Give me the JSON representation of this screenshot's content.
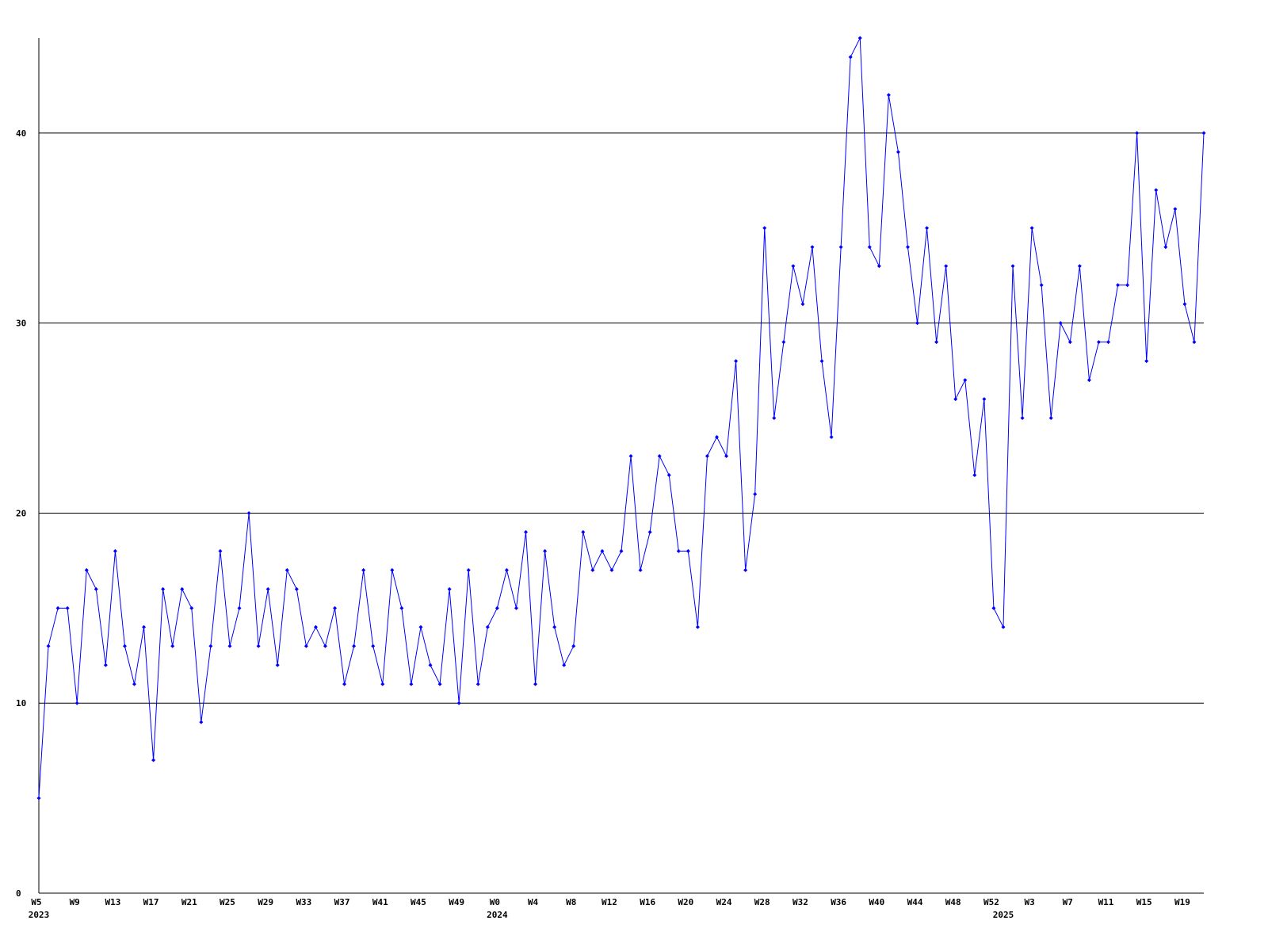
{
  "chart_data": {
    "type": "line",
    "categories": [
      "W5",
      null,
      null,
      null,
      "W9",
      null,
      null,
      null,
      "W13",
      null,
      null,
      null,
      "W17",
      null,
      null,
      null,
      "W21",
      null,
      null,
      null,
      "W25",
      null,
      null,
      null,
      "W29",
      null,
      null,
      null,
      "W33",
      null,
      null,
      null,
      "W37",
      null,
      null,
      null,
      "W41",
      null,
      null,
      null,
      "W45",
      null,
      null,
      null,
      "W49",
      null,
      null,
      null,
      "W0",
      null,
      null,
      null,
      "W4",
      null,
      null,
      null,
      "W8",
      null,
      null,
      null,
      "W12",
      null,
      null,
      null,
      "W16",
      null,
      null,
      null,
      "W20",
      null,
      null,
      null,
      "W24",
      null,
      null,
      null,
      "W28",
      null,
      null,
      null,
      "W32",
      null,
      null,
      null,
      "W36",
      null,
      null,
      null,
      "W40",
      null,
      null,
      null,
      "W44",
      null,
      null,
      null,
      "W48",
      null,
      null,
      null,
      "W52",
      null,
      null,
      null,
      "W3",
      null,
      null,
      null,
      "W7",
      null,
      null,
      null,
      "W11",
      null,
      null,
      null,
      "W15",
      null,
      null,
      null,
      "W19",
      null,
      null
    ],
    "years": [
      "2023",
      null,
      null,
      null,
      null,
      null,
      null,
      null,
      null,
      null,
      null,
      null,
      null,
      null,
      null,
      null,
      null,
      null,
      null,
      null,
      null,
      null,
      null,
      null,
      null,
      null,
      null,
      null,
      null,
      null,
      null,
      null,
      null,
      null,
      null,
      null,
      null,
      null,
      null,
      null,
      null,
      null,
      null,
      null,
      null,
      null,
      null,
      null,
      "2024",
      null,
      null,
      null,
      null,
      null,
      null,
      null,
      null,
      null,
      null,
      null,
      null,
      null,
      null,
      null,
      null,
      null,
      null,
      null,
      null,
      null,
      null,
      null,
      null,
      null,
      null,
      null,
      null,
      null,
      null,
      null,
      null,
      null,
      null,
      null,
      null,
      null,
      null,
      null,
      null,
      null,
      null,
      null,
      null,
      null,
      null,
      null,
      null,
      null,
      null,
      null,
      null,
      "2025",
      null,
      null,
      null,
      null,
      null,
      null,
      null,
      null,
      null,
      null,
      null,
      null,
      null,
      null,
      null,
      null,
      null,
      null,
      null,
      null
    ],
    "series": [
      {
        "color": "#0000ff",
        "values": [
          5,
          13,
          15,
          15,
          10,
          17,
          16,
          12,
          18,
          13,
          11,
          14,
          7,
          16,
          13,
          16,
          15,
          9,
          13,
          18,
          13,
          15,
          20,
          13,
          16,
          12,
          17,
          16,
          13,
          14,
          13,
          15,
          11,
          13,
          17,
          13,
          11,
          17,
          15,
          11,
          14,
          12,
          11,
          16,
          10,
          17,
          11,
          14,
          15,
          17,
          15,
          19,
          11,
          18,
          14,
          12,
          13,
          19,
          17,
          18,
          17,
          18,
          23,
          17,
          19,
          23,
          22,
          18,
          18,
          14,
          23,
          24,
          23,
          28,
          17,
          21,
          35,
          25,
          29,
          33,
          31,
          34,
          28,
          24,
          34,
          44,
          45,
          34,
          33,
          42,
          39,
          34,
          30,
          35,
          29,
          33,
          26,
          27,
          22,
          26,
          15,
          14,
          33,
          25,
          35,
          32,
          25,
          30,
          29,
          33,
          27,
          29,
          29,
          32,
          32,
          40,
          28,
          37,
          34,
          36,
          31,
          29,
          40
        ]
      }
    ],
    "ylim": [
      0,
      45
    ],
    "yticks": [
      0,
      10,
      20,
      30,
      40
    ],
    "grid": true
  }
}
